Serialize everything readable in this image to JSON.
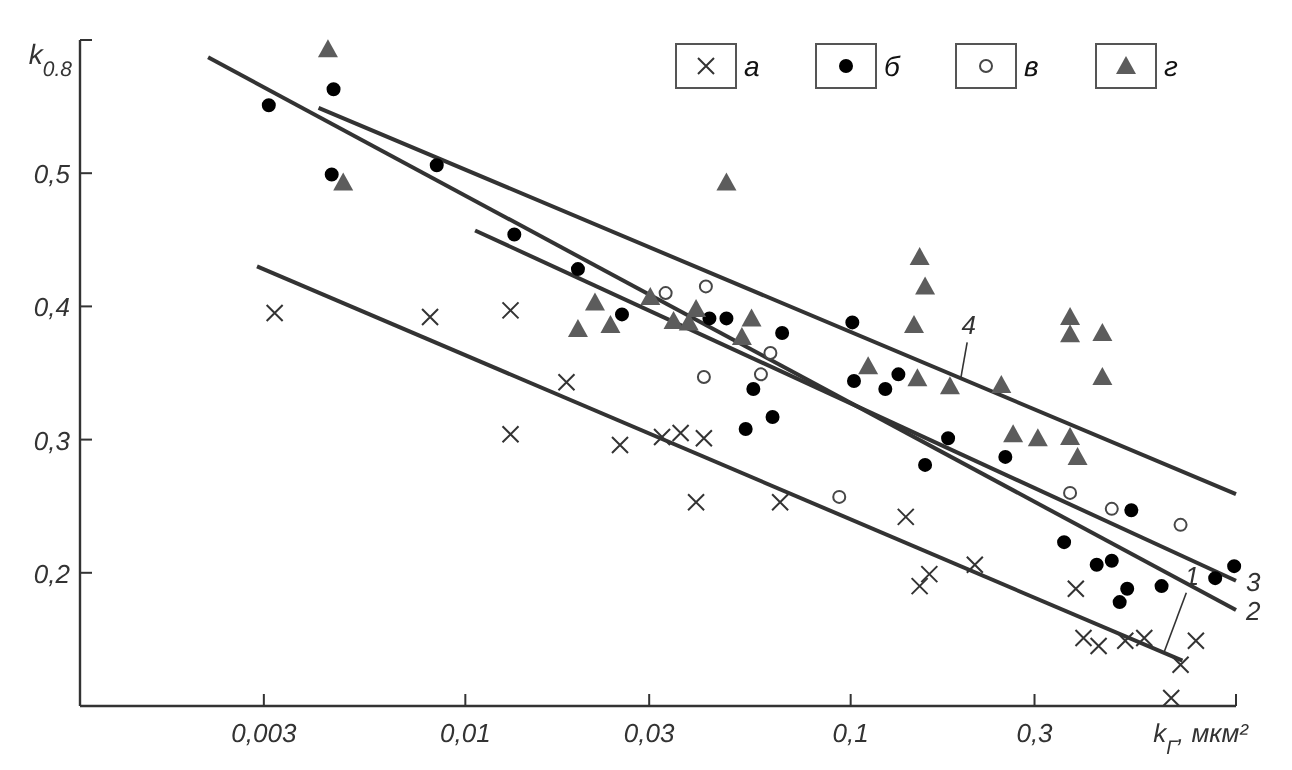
{
  "chart_data": {
    "type": "scatter",
    "xlabel": "k$_{Г}$, мкм²",
    "ylabel": "k$_{0.8}$",
    "log": "x",
    "xlim": [
      0.001,
      1
    ],
    "ylim": [
      0.1,
      0.6
    ],
    "xticks": [
      {
        "value": 0.003,
        "label": "0,003"
      },
      {
        "value": 0.01,
        "label": "0,01"
      },
      {
        "value": 0.03,
        "label": "0,03"
      },
      {
        "value": 0.1,
        "label": "0,1"
      },
      {
        "value": 0.3,
        "label": "0,3"
      },
      {
        "value": 1,
        "label": null
      }
    ],
    "yticks": [
      {
        "value": 0.2,
        "label": "0,2"
      },
      {
        "value": 0.3,
        "label": "0,3"
      },
      {
        "value": 0.4,
        "label": "0,4"
      },
      {
        "value": 0.5,
        "label": "0,5"
      },
      {
        "value": 0.6,
        "label": null
      }
    ],
    "grid": false,
    "legend": "top right",
    "series": [
      {
        "name": "а",
        "marker": "cross",
        "color": "#333333",
        "x": [
          0.0032,
          0.0081,
          0.0131,
          0.0183,
          0.0131,
          0.0252,
          0.0324,
          0.0362,
          0.0416,
          0.0397,
          0.0656,
          0.139,
          0.151,
          0.16,
          0.21,
          0.384,
          0.402,
          0.44,
          0.516,
          0.578,
          0.718,
          0.787,
          0.679
        ],
        "values": [
          0.395,
          0.392,
          0.397,
          0.343,
          0.304,
          0.296,
          0.302,
          0.305,
          0.301,
          0.253,
          0.253,
          0.242,
          0.19,
          0.199,
          0.206,
          0.188,
          0.151,
          0.145,
          0.149,
          0.151,
          0.131,
          0.149,
          0.106
        ]
      },
      {
        "name": "б",
        "marker": "circle",
        "color": "#000000",
        "x": [
          0.00309,
          0.00455,
          0.0045,
          0.00843,
          0.0134,
          0.0196,
          0.0255,
          0.043,
          0.0476,
          0.0664,
          0.101,
          0.102,
          0.123,
          0.133,
          0.0559,
          0.0534,
          0.0627,
          0.179,
          0.156,
          0.252,
          0.358,
          0.435,
          0.476,
          0.499,
          0.522,
          0.535,
          0.641,
          0.883,
          0.989
        ],
        "values": [
          0.551,
          0.563,
          0.499,
          0.506,
          0.454,
          0.428,
          0.394,
          0.391,
          0.391,
          0.38,
          0.388,
          0.344,
          0.338,
          0.349,
          0.338,
          0.308,
          0.317,
          0.301,
          0.281,
          0.287,
          0.223,
          0.206,
          0.209,
          0.178,
          0.188,
          0.247,
          0.19,
          0.196,
          0.205
        ]
      },
      {
        "name": "в",
        "marker": "circle",
        "color": "#ffffff",
        "x": [
          0.0331,
          0.0421,
          0.0619,
          0.0585,
          0.0416,
          0.0934,
          0.371,
          0.476,
          0.718
        ],
        "values": [
          0.41,
          0.415,
          0.365,
          0.349,
          0.347,
          0.257,
          0.26,
          0.248,
          0.236
        ]
      },
      {
        "name": "г",
        "marker": "triangle",
        "color": "#5c5c5c",
        "x": [
          0.0044,
          0.00482,
          0.0217,
          0.0196,
          0.0238,
          0.0302,
          0.0347,
          0.038,
          0.0397,
          0.0522,
          0.0553,
          0.0476,
          0.151,
          0.156,
          0.146,
          0.111,
          0.149,
          0.181,
          0.246,
          0.371,
          0.371,
          0.45,
          0.45,
          0.264,
          0.306,
          0.371,
          0.388
        ],
        "values": [
          0.593,
          0.493,
          0.403,
          0.383,
          0.386,
          0.407,
          0.389,
          0.388,
          0.398,
          0.377,
          0.391,
          0.493,
          0.437,
          0.415,
          0.386,
          0.355,
          0.346,
          0.34,
          0.341,
          0.392,
          0.379,
          0.38,
          0.347,
          0.304,
          0.301,
          0.302,
          0.287
        ]
      },
      {
        "name": "1",
        "type": "line",
        "color": "#333333",
        "x": [
          0.00288,
          0.726
        ],
        "values": [
          0.43,
          0.134
        ]
      },
      {
        "name": "2",
        "type": "line",
        "color": "#333333",
        "x": [
          0.00215,
          1
        ],
        "values": [
          0.587,
          0.172
        ]
      },
      {
        "name": "3",
        "type": "line",
        "color": "#333333",
        "x": [
          0.0106,
          1
        ],
        "values": [
          0.457,
          0.194
        ]
      },
      {
        "name": "4",
        "type": "line",
        "color": "#333333",
        "x": [
          0.00416,
          1
        ],
        "values": [
          0.549,
          0.259
        ]
      }
    ]
  }
}
